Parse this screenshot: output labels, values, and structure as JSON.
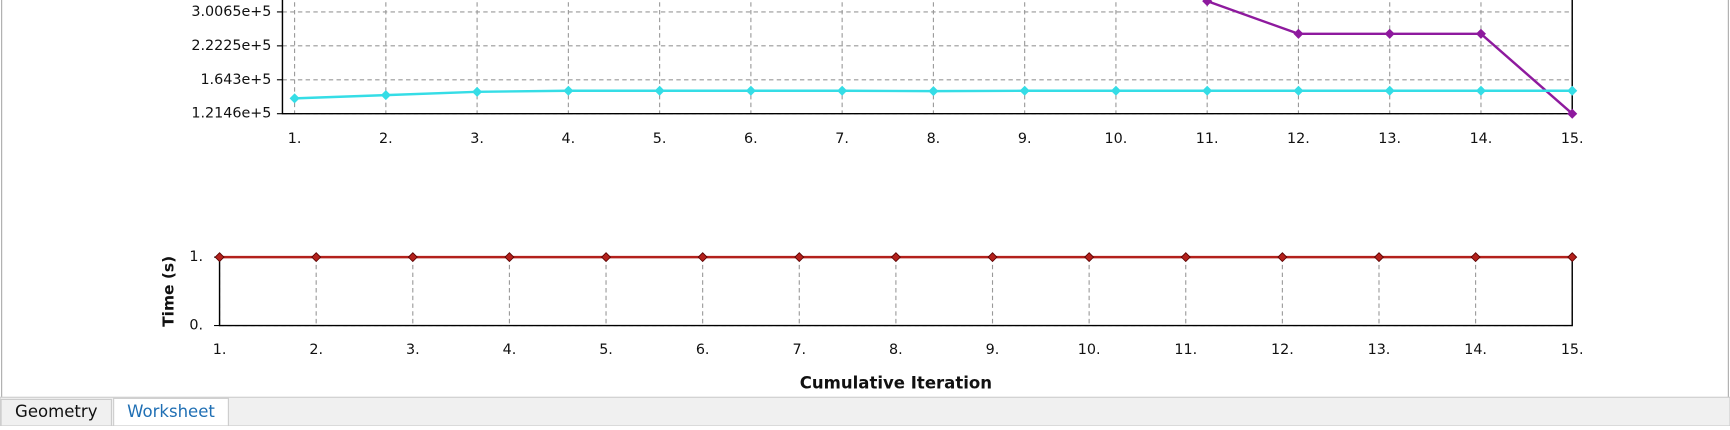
{
  "chart_data": [
    {
      "type": "line",
      "log_y": true,
      "grid": true,
      "x": [
        1,
        2,
        3,
        4,
        5,
        6,
        7,
        8,
        9,
        10,
        11,
        12,
        13,
        14,
        15
      ],
      "xlim": [
        1,
        15
      ],
      "xticks": [
        {
          "value": 1,
          "label": "1."
        },
        {
          "value": 2,
          "label": "2."
        },
        {
          "value": 3,
          "label": "3."
        },
        {
          "value": 4,
          "label": "4."
        },
        {
          "value": 5,
          "label": "5."
        },
        {
          "value": 6,
          "label": "6."
        },
        {
          "value": 7,
          "label": "7."
        },
        {
          "value": 8,
          "label": "8."
        },
        {
          "value": 9,
          "label": "9."
        },
        {
          "value": 10,
          "label": "10."
        },
        {
          "value": 11,
          "label": "11."
        },
        {
          "value": 12,
          "label": "12."
        },
        {
          "value": 13,
          "label": "13."
        },
        {
          "value": 14,
          "label": "14."
        },
        {
          "value": 15,
          "label": "15."
        }
      ],
      "ylim": [
        121460,
        406700
      ],
      "yticks": [
        {
          "value": 121460,
          "label": "1.2146e+5"
        },
        {
          "value": 164300,
          "label": "1.643e+5"
        },
        {
          "value": 222250,
          "label": "2.2225e+5"
        },
        {
          "value": 300650,
          "label": "3.0065e+5"
        }
      ],
      "series": [
        {
          "color": "#8e1a9e",
          "values": [
            null,
            null,
            null,
            null,
            null,
            null,
            null,
            null,
            null,
            null,
            331000,
            247400,
            247400,
            247400,
            121460
          ]
        },
        {
          "color": "#35dde6",
          "values": [
            139200,
            143300,
            147600,
            149000,
            149000,
            149000,
            149000,
            148500,
            149000,
            149000,
            149000,
            149000,
            149000,
            149000,
            149000
          ]
        }
      ]
    },
    {
      "type": "line",
      "grid": true,
      "y_label": "Time (s)",
      "x_label": "Cumulative Iteration",
      "x": [
        1,
        2,
        3,
        4,
        5,
        6,
        7,
        8,
        9,
        10,
        11,
        12,
        13,
        14,
        15
      ],
      "xlim": [
        1,
        15
      ],
      "xticks": [
        {
          "value": 1,
          "label": "1."
        },
        {
          "value": 2,
          "label": "2."
        },
        {
          "value": 3,
          "label": "3."
        },
        {
          "value": 4,
          "label": "4."
        },
        {
          "value": 5,
          "label": "5."
        },
        {
          "value": 6,
          "label": "6."
        },
        {
          "value": 7,
          "label": "7."
        },
        {
          "value": 8,
          "label": "8."
        },
        {
          "value": 9,
          "label": "9."
        },
        {
          "value": 10,
          "label": "10."
        },
        {
          "value": 11,
          "label": "11."
        },
        {
          "value": 12,
          "label": "12."
        },
        {
          "value": 13,
          "label": "13."
        },
        {
          "value": 14,
          "label": "14."
        },
        {
          "value": 15,
          "label": "15."
        }
      ],
      "ylim": [
        0,
        1
      ],
      "yticks": [
        {
          "value": 0,
          "label": "0."
        },
        {
          "value": 1,
          "label": "1."
        }
      ],
      "series": [
        {
          "color": "#b3211c",
          "values": [
            1,
            1,
            1,
            1,
            1,
            1,
            1,
            1,
            1,
            1,
            1,
            1,
            1,
            1,
            1
          ]
        }
      ]
    }
  ],
  "tabs": [
    "Geometry",
    "Worksheet"
  ]
}
